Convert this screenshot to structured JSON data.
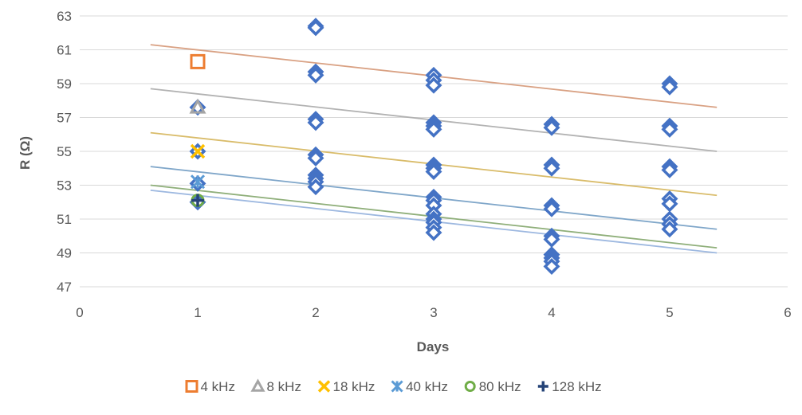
{
  "chart_data": {
    "type": "scatter",
    "title": "",
    "xlabel": "Days",
    "ylabel": "R (Ω)",
    "xlim": [
      0,
      6
    ],
    "ylim": [
      47,
      63
    ],
    "x_ticks": [
      0,
      1,
      2,
      3,
      4,
      5,
      6
    ],
    "y_ticks": [
      47,
      49,
      51,
      53,
      55,
      57,
      59,
      61,
      63
    ],
    "grid": "horizontal",
    "legend_position": "bottom",
    "series": [
      {
        "name": "4 kHz",
        "marker": "square",
        "color": "#ED7D31",
        "points": [
          [
            1,
            60.3
          ]
        ],
        "trendline_color": "#D9A183",
        "trendline": [
          [
            0.6,
            61.3
          ],
          [
            5.4,
            57.6
          ]
        ]
      },
      {
        "name": "8 kHz",
        "marker": "triangle",
        "color": "#A5A5A5",
        "points": [
          [
            1,
            57.6
          ]
        ],
        "trendline_color": "#B2B2B2",
        "trendline": [
          [
            0.6,
            58.7
          ],
          [
            5.4,
            55.0
          ]
        ]
      },
      {
        "name": "18 kHz",
        "marker": "x",
        "color": "#FFC000",
        "points": [
          [
            1,
            55.0
          ]
        ],
        "trendline_color": "#D9BC6A",
        "trendline": [
          [
            0.6,
            56.1
          ],
          [
            5.4,
            52.4
          ]
        ]
      },
      {
        "name": "40 kHz",
        "marker": "star",
        "color": "#5B9BD5",
        "points": [
          [
            1,
            53.2
          ]
        ],
        "trendline_color": "#7FA6C9",
        "trendline": [
          [
            0.6,
            54.1
          ],
          [
            5.4,
            50.4
          ]
        ]
      },
      {
        "name": "80 kHz",
        "marker": "circle",
        "color": "#70AD47",
        "points": [
          [
            1,
            52.1
          ]
        ],
        "trendline_color": "#8FAF7A",
        "trendline": [
          [
            0.6,
            53.0
          ],
          [
            5.4,
            49.3
          ]
        ]
      },
      {
        "name": "128 kHz",
        "marker": "plus",
        "color": "#264478",
        "points": [
          [
            1,
            52.1
          ]
        ],
        "trendline_color": "#9DB8E0",
        "trendline": [
          [
            0.6,
            52.7
          ],
          [
            5.4,
            49.0
          ]
        ]
      },
      {
        "name": "",
        "marker": "diamond",
        "color": "#4472C4",
        "points": [
          [
            1,
            57.6
          ],
          [
            1,
            55.0
          ],
          [
            1,
            53.1
          ],
          [
            1,
            52.0
          ],
          [
            2,
            62.4
          ],
          [
            2,
            62.3
          ],
          [
            2,
            59.7
          ],
          [
            2,
            59.5
          ],
          [
            2,
            56.9
          ],
          [
            2,
            56.7
          ],
          [
            2,
            54.8
          ],
          [
            2,
            54.6
          ],
          [
            2,
            53.6
          ],
          [
            2,
            53.4
          ],
          [
            2,
            53.2
          ],
          [
            2,
            52.9
          ],
          [
            3,
            59.5
          ],
          [
            3,
            59.2
          ],
          [
            3,
            58.9
          ],
          [
            3,
            56.7
          ],
          [
            3,
            56.5
          ],
          [
            3,
            56.3
          ],
          [
            3,
            54.2
          ],
          [
            3,
            54.0
          ],
          [
            3,
            53.8
          ],
          [
            3,
            52.3
          ],
          [
            3,
            52.1
          ],
          [
            3,
            51.8
          ],
          [
            3,
            51.3
          ],
          [
            3,
            51.0
          ],
          [
            3,
            50.8
          ],
          [
            3,
            50.5
          ],
          [
            3,
            50.2
          ],
          [
            4,
            56.6
          ],
          [
            4,
            56.4
          ],
          [
            4,
            54.2
          ],
          [
            4,
            54.0
          ],
          [
            4,
            51.8
          ],
          [
            4,
            51.6
          ],
          [
            4,
            50.0
          ],
          [
            4,
            49.8
          ],
          [
            4,
            48.9
          ],
          [
            4,
            48.7
          ],
          [
            4,
            48.5
          ],
          [
            4,
            48.2
          ],
          [
            5,
            59.0
          ],
          [
            5,
            58.8
          ],
          [
            5,
            56.5
          ],
          [
            5,
            56.3
          ],
          [
            5,
            54.1
          ],
          [
            5,
            53.9
          ],
          [
            5,
            52.2
          ],
          [
            5,
            51.9
          ],
          [
            5,
            51.0
          ],
          [
            5,
            50.7
          ],
          [
            5,
            50.4
          ]
        ]
      }
    ],
    "legend": [
      "4 kHz",
      "8 kHz",
      "18 kHz",
      "40 kHz",
      "80 kHz",
      "128 kHz"
    ]
  }
}
